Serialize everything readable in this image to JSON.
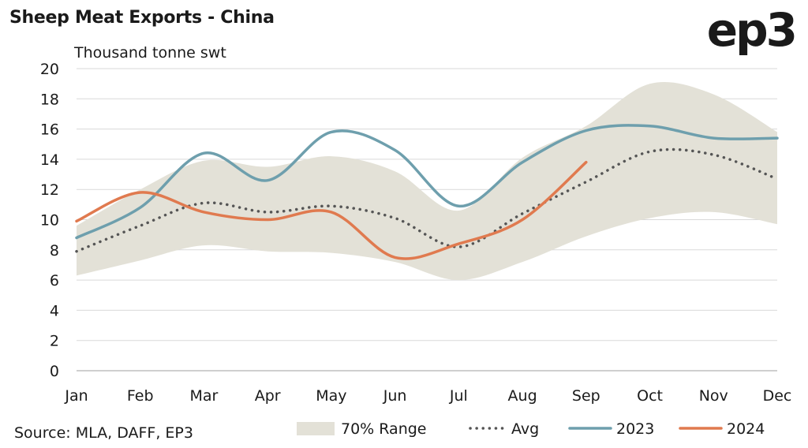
{
  "header": {
    "title": "Sheep Meat Exports - China",
    "logo": "ep3"
  },
  "footer": {
    "source": "Source: MLA, DAFF, EP3"
  },
  "colors": {
    "range": "#e3e1d7",
    "avg": "#555555",
    "y2023": "#6e9fad",
    "y2024": "#e07a4f",
    "grid": "#d9d9d9",
    "axis": "#bfbfbf"
  },
  "chart_data": {
    "type": "line",
    "title": "Sheep Meat Exports - China",
    "ylabel": "Thousand tonne swt",
    "xlabel": "",
    "ylim": [
      0,
      20
    ],
    "yticks": [
      0,
      2,
      4,
      6,
      8,
      10,
      12,
      14,
      16,
      18,
      20
    ],
    "categories": [
      "Jan",
      "Feb",
      "Mar",
      "Apr",
      "May",
      "Jun",
      "Jul",
      "Aug",
      "Sep",
      "Oct",
      "Nov",
      "Dec"
    ],
    "grid": true,
    "legend_position": "bottom",
    "range": {
      "name": "70% Range",
      "low": [
        6.3,
        7.3,
        8.3,
        7.9,
        7.8,
        7.2,
        6.0,
        7.2,
        8.9,
        10.1,
        10.5,
        9.7
      ],
      "high": [
        9.6,
        12.0,
        13.9,
        13.5,
        14.2,
        13.2,
        10.6,
        14.1,
        16.2,
        19.0,
        18.3,
        15.8
      ]
    },
    "series": [
      {
        "name": "Avg",
        "style": "dotted",
        "values": [
          7.9,
          9.6,
          11.1,
          10.5,
          10.9,
          10.1,
          8.2,
          10.4,
          12.5,
          14.5,
          14.3,
          12.7
        ]
      },
      {
        "name": "2023",
        "style": "solid",
        "values": [
          8.8,
          10.8,
          14.4,
          12.6,
          15.8,
          14.6,
          10.9,
          13.8,
          15.9,
          16.2,
          15.4,
          15.4
        ]
      },
      {
        "name": "2024",
        "style": "solid",
        "values": [
          9.9,
          11.8,
          10.5,
          10.0,
          10.5,
          7.5,
          8.4,
          10.0,
          13.8,
          null,
          null,
          null
        ]
      }
    ],
    "legend": [
      "70% Range",
      "Avg",
      "2023",
      "2024"
    ]
  }
}
